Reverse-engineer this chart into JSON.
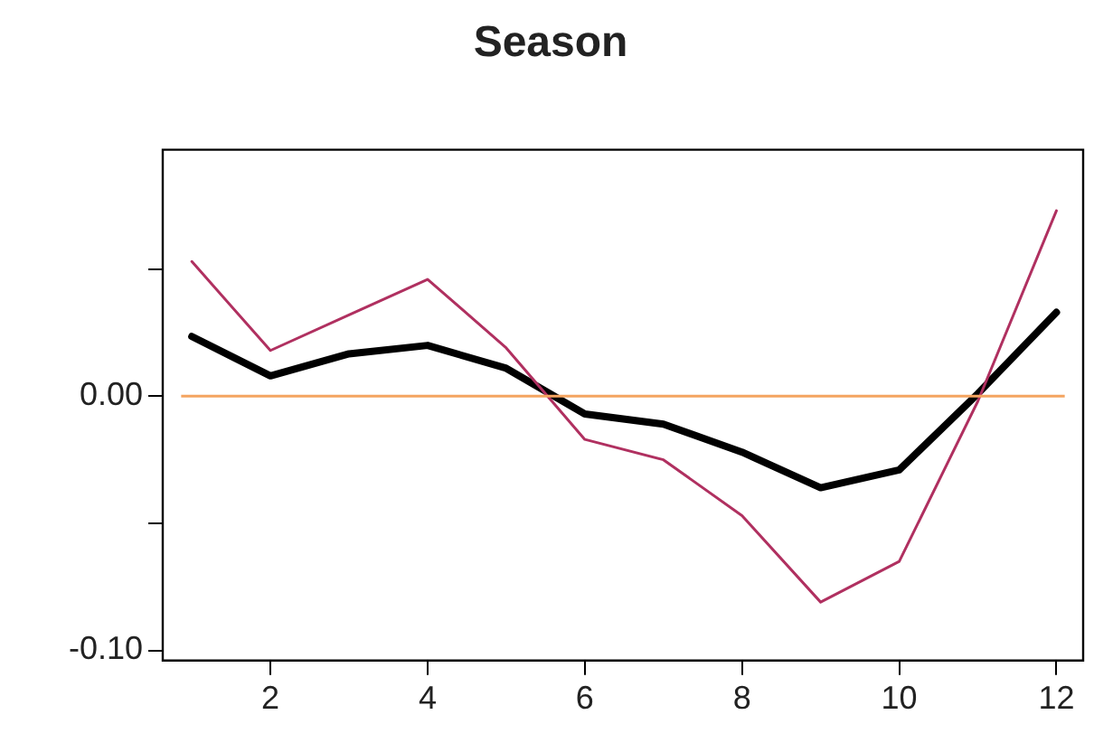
{
  "chart_data": {
    "type": "line",
    "title": "Season",
    "x": [
      1,
      2,
      3,
      4,
      5,
      6,
      7,
      8,
      9,
      10,
      11,
      12
    ],
    "series": [
      {
        "color": "#b03060",
        "values": [
          0.053,
          0.018,
          0.032,
          0.046,
          0.019,
          -0.017,
          -0.025,
          -0.047,
          -0.081,
          -0.065,
          -0.002,
          0.073
        ]
      },
      {
        "color": "#000000",
        "values": [
          0.0235,
          0.008,
          0.0167,
          0.02,
          0.011,
          -0.007,
          -0.011,
          -0.022,
          -0.036,
          -0.029,
          0.001,
          0.033
        ]
      }
    ],
    "xlim": [
      0.63,
      12.34
    ],
    "xticks": [
      2,
      4,
      6,
      8,
      10,
      12
    ],
    "ylim": [
      -0.104,
      0.097
    ],
    "yticks": [
      {
        "value": -0.1,
        "label": "-0.10"
      },
      {
        "value": -0.05,
        "label": null
      },
      {
        "value": 0,
        "label": "0.00"
      },
      {
        "value": 0.05,
        "label": null
      }
    ],
    "ref_lines": [
      {
        "axis": "y",
        "value": 0,
        "color": "#f4a460"
      }
    ],
    "grid": false,
    "legend": false,
    "marker": "none",
    "line_style": "solid"
  }
}
